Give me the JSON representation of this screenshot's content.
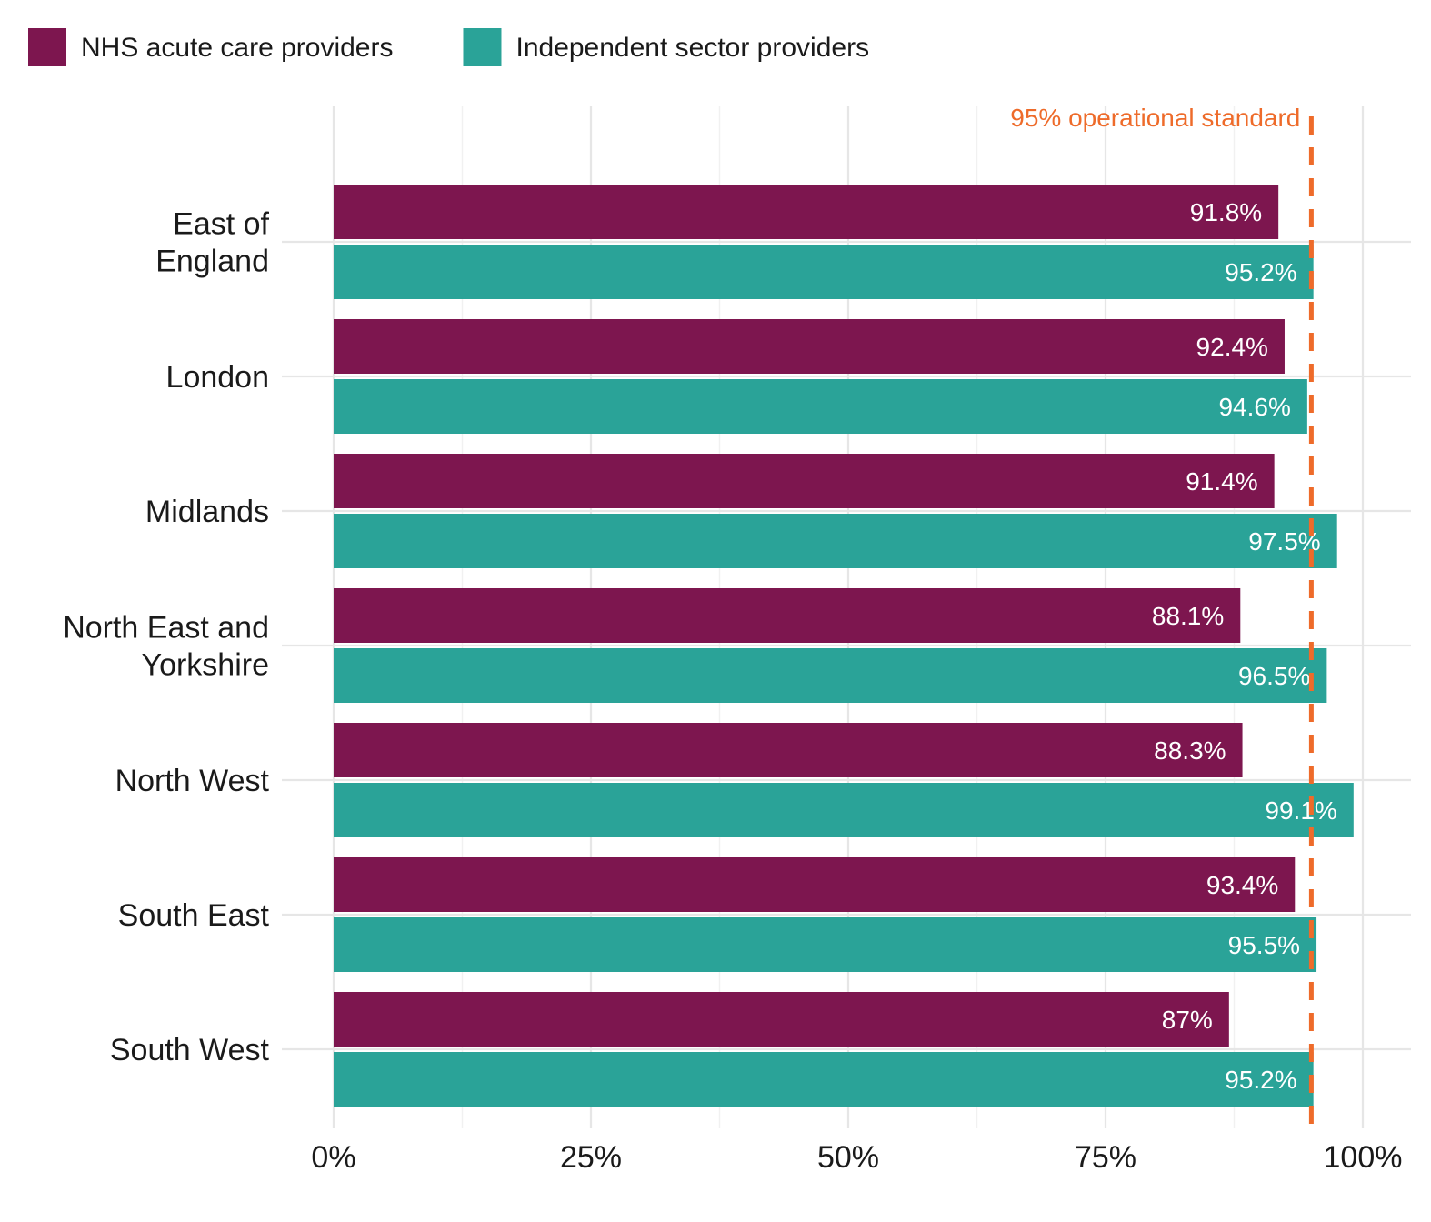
{
  "chart_data": {
    "type": "bar",
    "orientation": "horizontal",
    "categories": [
      [
        "East of",
        "England"
      ],
      [
        "London"
      ],
      [
        "Midlands"
      ],
      [
        "North East and",
        "Yorkshire"
      ],
      [
        "North West"
      ],
      [
        "South East"
      ],
      [
        "South West"
      ]
    ],
    "series": [
      {
        "name": "NHS acute care providers",
        "color": "#7d164f",
        "values": [
          91.8,
          92.4,
          91.4,
          88.1,
          88.3,
          93.4,
          87
        ],
        "labels": [
          "91.8%",
          "92.4%",
          "91.4%",
          "88.1%",
          "88.3%",
          "93.4%",
          "87%"
        ]
      },
      {
        "name": "Independent sector providers",
        "color": "#2aa398",
        "values": [
          95.2,
          94.6,
          97.5,
          96.5,
          99.1,
          95.5,
          95.2
        ],
        "labels": [
          "95.2%",
          "94.6%",
          "97.5%",
          "96.5%",
          "99.1%",
          "95.5%",
          "95.2%"
        ]
      }
    ],
    "xlim": [
      0,
      100
    ],
    "x_ticks": [
      0,
      25,
      50,
      75,
      100
    ],
    "x_tick_labels": [
      "0%",
      "25%",
      "50%",
      "75%",
      "100%"
    ],
    "reference_line": {
      "value": 95,
      "label": "95% operational standard",
      "color": "#ee6b2a",
      "style": "dashed"
    },
    "legend_position": "top-left",
    "grid": true,
    "title": "",
    "xlabel": "",
    "ylabel": ""
  }
}
